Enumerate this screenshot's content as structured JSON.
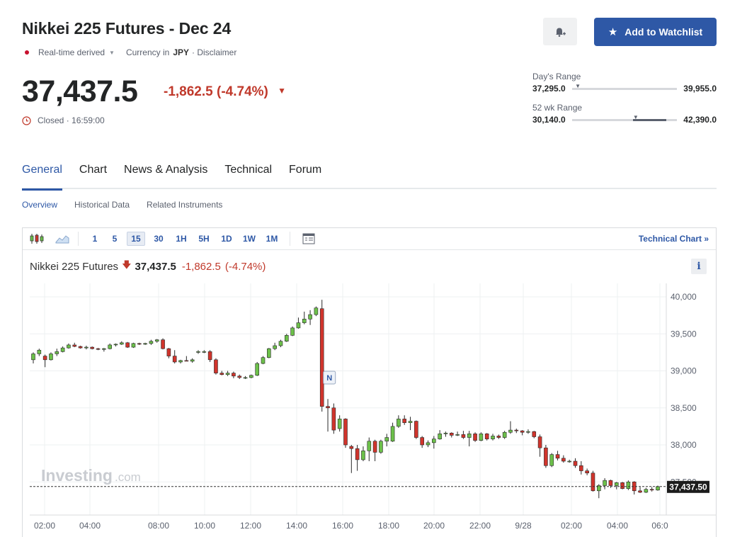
{
  "header": {
    "title": "Nikkei 225 Futures - Dec 24",
    "realtime": "Real-time derived",
    "currency_label": "Currency in",
    "currency": "JPY",
    "disclaimer": "· Disclaimer",
    "alert_icon": "bell-plus-icon",
    "watchlist_label": "Add to Watchlist"
  },
  "quote": {
    "price": "37,437.5",
    "change": "-1,862.5",
    "change_pct": "(-4.74%)",
    "status": "Closed · 16:59:00"
  },
  "days_range": {
    "label": "Day's Range",
    "low": "37,295.0",
    "high": "39,955.0",
    "position": 0.05
  },
  "wk52_range": {
    "label": "52 wk Range",
    "low": "30,140.0",
    "high": "42,390.0",
    "position": 0.6,
    "fill_start": 0.58,
    "fill_end": 0.9
  },
  "tabs": [
    "General",
    "Chart",
    "News & Analysis",
    "Technical",
    "Forum"
  ],
  "subtabs": [
    "Overview",
    "Historical Data",
    "Related Instruments"
  ],
  "toolbar": {
    "timeframes": [
      "1",
      "5",
      "15",
      "30",
      "1H",
      "5H",
      "1D",
      "1W",
      "1M"
    ],
    "active_timeframe": "15",
    "technical_link": "Technical Chart »"
  },
  "legend": {
    "name": "Nikkei 225 Futures",
    "price": "37,437.5",
    "change": "-1,862.5",
    "change_pct": "(-4.74%)",
    "info": "i"
  },
  "watermark": {
    "brand": "Investing",
    "suffix": ".com"
  },
  "chart_data": {
    "type": "candlestick",
    "x_ticks": [
      "02:00",
      "04:00",
      "08:00",
      "10:00",
      "12:00",
      "14:00",
      "16:00",
      "18:00",
      "20:00",
      "22:00",
      "9/28",
      "02:00",
      "04:00",
      "06:0"
    ],
    "y_ticks": [
      "40,000",
      "39,500",
      "39,000",
      "38,500",
      "38,000",
      "37,500"
    ],
    "ylim": [
      37000,
      40100
    ],
    "last_price_label": "37,437.50",
    "last_price": 37437.5,
    "event_marker": "N",
    "colors": {
      "up": "#6cc04a",
      "down": "#d0342c"
    },
    "candles": [
      [
        39150,
        39250,
        39100,
        39230
      ],
      [
        39230,
        39300,
        39200,
        39280
      ],
      [
        39200,
        39220,
        39050,
        39150
      ],
      [
        39150,
        39250,
        39140,
        39230
      ],
      [
        39230,
        39300,
        39200,
        39260
      ],
      [
        39260,
        39330,
        39250,
        39310
      ],
      [
        39310,
        39370,
        39300,
        39350
      ],
      [
        39350,
        39380,
        39320,
        39330
      ],
      [
        39330,
        39340,
        39300,
        39310
      ],
      [
        39310,
        39340,
        39290,
        39320
      ],
      [
        39320,
        39330,
        39290,
        39300
      ],
      [
        39300,
        39310,
        39280,
        39290
      ],
      [
        39290,
        39310,
        39260,
        39300
      ],
      [
        39300,
        39370,
        39290,
        39350
      ],
      [
        39350,
        39370,
        39330,
        39360
      ],
      [
        39360,
        39400,
        39350,
        39380
      ],
      [
        39380,
        39390,
        39310,
        39320
      ],
      [
        39320,
        39380,
        39310,
        39370
      ],
      [
        39370,
        39380,
        39350,
        39360
      ],
      [
        39360,
        39380,
        39350,
        39370
      ],
      [
        39370,
        39420,
        39350,
        39400
      ],
      [
        39400,
        39430,
        39380,
        39420
      ],
      [
        39420,
        39440,
        39290,
        39300
      ],
      [
        39300,
        39310,
        39170,
        39200
      ],
      [
        39200,
        39280,
        39100,
        39120
      ],
      [
        39120,
        39150,
        39100,
        39140
      ],
      [
        39140,
        39200,
        39130,
        39130
      ],
      [
        39130,
        39170,
        39110,
        39150
      ],
      [
        39250,
        39280,
        39230,
        39260
      ],
      [
        39260,
        39280,
        39240,
        39260
      ],
      [
        39260,
        39280,
        39120,
        39150
      ],
      [
        39150,
        39170,
        38950,
        38970
      ],
      [
        38970,
        39000,
        38940,
        38950
      ],
      [
        38950,
        39000,
        38930,
        38970
      ],
      [
        38970,
        38990,
        38900,
        38930
      ],
      [
        38930,
        38950,
        38890,
        38910
      ],
      [
        38910,
        38930,
        38890,
        38910
      ],
      [
        38910,
        38950,
        38900,
        38940
      ],
      [
        38940,
        39120,
        38930,
        39100
      ],
      [
        39100,
        39200,
        39090,
        39180
      ],
      [
        39180,
        39310,
        39170,
        39300
      ],
      [
        39300,
        39380,
        39280,
        39340
      ],
      [
        39340,
        39420,
        39320,
        39400
      ],
      [
        39400,
        39500,
        39390,
        39480
      ],
      [
        39480,
        39600,
        39470,
        39580
      ],
      [
        39580,
        39720,
        39570,
        39650
      ],
      [
        39650,
        39800,
        39630,
        39700
      ],
      [
        39700,
        39820,
        39620,
        39760
      ],
      [
        39760,
        39870,
        39740,
        39850
      ],
      [
        39840,
        39960,
        38450,
        38520
      ],
      [
        38520,
        38620,
        38180,
        38500
      ],
      [
        38500,
        38560,
        38150,
        38200
      ],
      [
        38220,
        38400,
        38180,
        38350
      ],
      [
        38350,
        38360,
        37960,
        38000
      ],
      [
        37980,
        38000,
        37620,
        37950
      ],
      [
        37950,
        38000,
        37650,
        37800
      ],
      [
        37800,
        37980,
        37780,
        37920
      ],
      [
        37920,
        38100,
        37780,
        38050
      ],
      [
        38050,
        38070,
        37780,
        37900
      ],
      [
        37900,
        38070,
        37880,
        38050
      ],
      [
        38050,
        38150,
        37980,
        38100
      ],
      [
        38050,
        38300,
        38040,
        38250
      ],
      [
        38250,
        38400,
        38230,
        38350
      ],
      [
        38350,
        38400,
        38270,
        38300
      ],
      [
        38300,
        38380,
        38200,
        38320
      ],
      [
        38320,
        38330,
        38080,
        38100
      ],
      [
        38100,
        38120,
        37960,
        38000
      ],
      [
        38000,
        38060,
        37970,
        38030
      ],
      [
        38030,
        38120,
        37950,
        38080
      ],
      [
        38080,
        38200,
        38070,
        38150
      ],
      [
        38150,
        38180,
        38110,
        38160
      ],
      [
        38160,
        38170,
        38100,
        38130
      ],
      [
        38130,
        38180,
        38120,
        38140
      ],
      [
        38140,
        38190,
        38080,
        38100
      ],
      [
        38100,
        38190,
        37980,
        38150
      ],
      [
        38150,
        38170,
        38040,
        38060
      ],
      [
        38060,
        38170,
        38050,
        38150
      ],
      [
        38150,
        38160,
        38060,
        38080
      ],
      [
        38080,
        38150,
        38060,
        38120
      ],
      [
        38120,
        38140,
        38080,
        38100
      ],
      [
        38100,
        38190,
        38080,
        38170
      ],
      [
        38170,
        38320,
        38150,
        38200
      ],
      [
        38200,
        38220,
        38160,
        38190
      ],
      [
        38190,
        38200,
        38130,
        38170
      ],
      [
        38170,
        38210,
        38150,
        38180
      ],
      [
        38180,
        38190,
        38090,
        38110
      ],
      [
        38110,
        38140,
        37840,
        37960
      ],
      [
        37960,
        38000,
        37690,
        37720
      ],
      [
        37720,
        37890,
        37700,
        37870
      ],
      [
        37870,
        37920,
        37790,
        37820
      ],
      [
        37820,
        37860,
        37760,
        37780
      ],
      [
        37780,
        37800,
        37760,
        37780
      ],
      [
        37780,
        37820,
        37690,
        37720
      ],
      [
        37720,
        37780,
        37600,
        37650
      ],
      [
        37650,
        37680,
        37590,
        37620
      ],
      [
        37620,
        37650,
        37370,
        37380
      ],
      [
        37380,
        37470,
        37280,
        37450
      ],
      [
        37450,
        37550,
        37400,
        37520
      ],
      [
        37520,
        37530,
        37420,
        37450
      ],
      [
        37450,
        37500,
        37400,
        37490
      ],
      [
        37490,
        37500,
        37400,
        37410
      ],
      [
        37410,
        37520,
        37390,
        37500
      ],
      [
        37500,
        37510,
        37330,
        37380
      ],
      [
        37380,
        37430,
        37350,
        37360
      ],
      [
        37360,
        37420,
        37350,
        37400
      ],
      [
        37400,
        37430,
        37370,
        37390
      ],
      [
        37390,
        37450,
        37380,
        37437
      ]
    ]
  }
}
